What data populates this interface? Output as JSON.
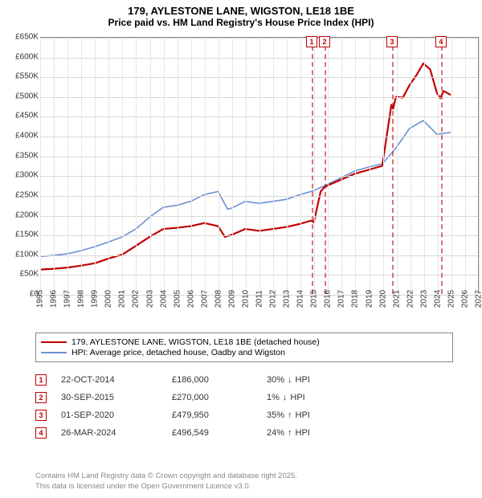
{
  "title": "179, AYLESTONE LANE, WIGSTON, LE18 1BE",
  "subtitle": "Price paid vs. HM Land Registry's House Price Index (HPI)",
  "chart": {
    "type": "line",
    "background_color": "#ffffff",
    "grid_color": "#d8d8d8",
    "grid_color_v": "#e6e6e6",
    "axis_color": "#888888",
    "xlim": [
      1995,
      2027
    ],
    "ylim": [
      0,
      650000
    ],
    "ytick_step": 50000,
    "yticks": [
      "£0",
      "£50K",
      "£100K",
      "£150K",
      "£200K",
      "£250K",
      "£300K",
      "£350K",
      "£400K",
      "£450K",
      "£500K",
      "£550K",
      "£600K",
      "£650K"
    ],
    "xticks": [
      1995,
      1996,
      1997,
      1998,
      1999,
      2000,
      2001,
      2002,
      2003,
      2004,
      2005,
      2006,
      2007,
      2008,
      2009,
      2010,
      2011,
      2012,
      2013,
      2014,
      2015,
      2016,
      2017,
      2018,
      2019,
      2020,
      2021,
      2022,
      2023,
      2024,
      2025,
      2026,
      2027
    ],
    "label_fontsize": 10,
    "title_fontsize": 13,
    "line_width_red": 2.2,
    "line_width_blue": 1.6,
    "series": [
      {
        "name": "179, AYLESTONE LANE, WIGSTON, LE18 1BE (detached house)",
        "color": "#c00000",
        "points": [
          [
            1995,
            62000
          ],
          [
            1996,
            64000
          ],
          [
            1997,
            67000
          ],
          [
            1998,
            72000
          ],
          [
            1999,
            78000
          ],
          [
            2000,
            90000
          ],
          [
            2001,
            100000
          ],
          [
            2002,
            122000
          ],
          [
            2003,
            145000
          ],
          [
            2004,
            165000
          ],
          [
            2005,
            168000
          ],
          [
            2006,
            172000
          ],
          [
            2007,
            180000
          ],
          [
            2008,
            172000
          ],
          [
            2008.5,
            145000
          ],
          [
            2009,
            150000
          ],
          [
            2010,
            165000
          ],
          [
            2011,
            160000
          ],
          [
            2012,
            165000
          ],
          [
            2013,
            170000
          ],
          [
            2014,
            178000
          ],
          [
            2014.8,
            186000
          ],
          [
            2015,
            182000
          ],
          [
            2015.5,
            260000
          ],
          [
            2015.75,
            270000
          ],
          [
            2016,
            275000
          ],
          [
            2017,
            290000
          ],
          [
            2018,
            305000
          ],
          [
            2019,
            315000
          ],
          [
            2020,
            325000
          ],
          [
            2020.67,
            480000
          ],
          [
            2020.8,
            470000
          ],
          [
            2021,
            500000
          ],
          [
            2021.5,
            498000
          ],
          [
            2022,
            530000
          ],
          [
            2022.5,
            555000
          ],
          [
            2023,
            585000
          ],
          [
            2023.5,
            570000
          ],
          [
            2024,
            510000
          ],
          [
            2024.24,
            496549
          ],
          [
            2024.5,
            515000
          ],
          [
            2025,
            505000
          ]
        ]
      },
      {
        "name": "HPI: Average price, detached house, Oadby and Wigston",
        "color": "#6a8fd0",
        "points": [
          [
            1995,
            95000
          ],
          [
            1996,
            98000
          ],
          [
            1997,
            102000
          ],
          [
            1998,
            110000
          ],
          [
            1999,
            120000
          ],
          [
            2000,
            132000
          ],
          [
            2001,
            145000
          ],
          [
            2002,
            165000
          ],
          [
            2003,
            195000
          ],
          [
            2004,
            220000
          ],
          [
            2005,
            225000
          ],
          [
            2006,
            235000
          ],
          [
            2007,
            252000
          ],
          [
            2008,
            260000
          ],
          [
            2008.7,
            215000
          ],
          [
            2009,
            218000
          ],
          [
            2010,
            235000
          ],
          [
            2011,
            230000
          ],
          [
            2012,
            235000
          ],
          [
            2013,
            240000
          ],
          [
            2014,
            252000
          ],
          [
            2015,
            262000
          ],
          [
            2016,
            278000
          ],
          [
            2017,
            295000
          ],
          [
            2018,
            312000
          ],
          [
            2019,
            322000
          ],
          [
            2020,
            330000
          ],
          [
            2021,
            370000
          ],
          [
            2022,
            420000
          ],
          [
            2023,
            440000
          ],
          [
            2024,
            405000
          ],
          [
            2025,
            410000
          ]
        ]
      }
    ],
    "markers": [
      {
        "n": "1",
        "x": 2014.81
      },
      {
        "n": "2",
        "x": 2015.75
      },
      {
        "n": "3",
        "x": 2020.67
      },
      {
        "n": "4",
        "x": 2024.24
      }
    ]
  },
  "legend": {
    "items": [
      {
        "label": "179, AYLESTONE LANE, WIGSTON, LE18 1BE (detached house)",
        "color": "#c00000"
      },
      {
        "label": "HPI: Average price, detached house, Oadby and Wigston",
        "color": "#6a8fd0"
      }
    ]
  },
  "transactions": [
    {
      "n": "1",
      "date": "22-OCT-2014",
      "price": "£186,000",
      "diff_pct": "30%",
      "diff_dir": "down",
      "diff_label": "HPI"
    },
    {
      "n": "2",
      "date": "30-SEP-2015",
      "price": "£270,000",
      "diff_pct": "1%",
      "diff_dir": "down",
      "diff_label": "HPI"
    },
    {
      "n": "3",
      "date": "01-SEP-2020",
      "price": "£479,950",
      "diff_pct": "35%",
      "diff_dir": "up",
      "diff_label": "HPI"
    },
    {
      "n": "4",
      "date": "26-MAR-2024",
      "price": "£496,549",
      "diff_pct": "24%",
      "diff_dir": "up",
      "diff_label": "HPI"
    }
  ],
  "footer": {
    "line1": "Contains HM Land Registry data © Crown copyright and database right 2025.",
    "line2": "This data is licensed under the Open Government Licence v3.0."
  },
  "colors": {
    "marker_border": "#c00000",
    "text": "#333333",
    "footer_text": "#888888"
  }
}
